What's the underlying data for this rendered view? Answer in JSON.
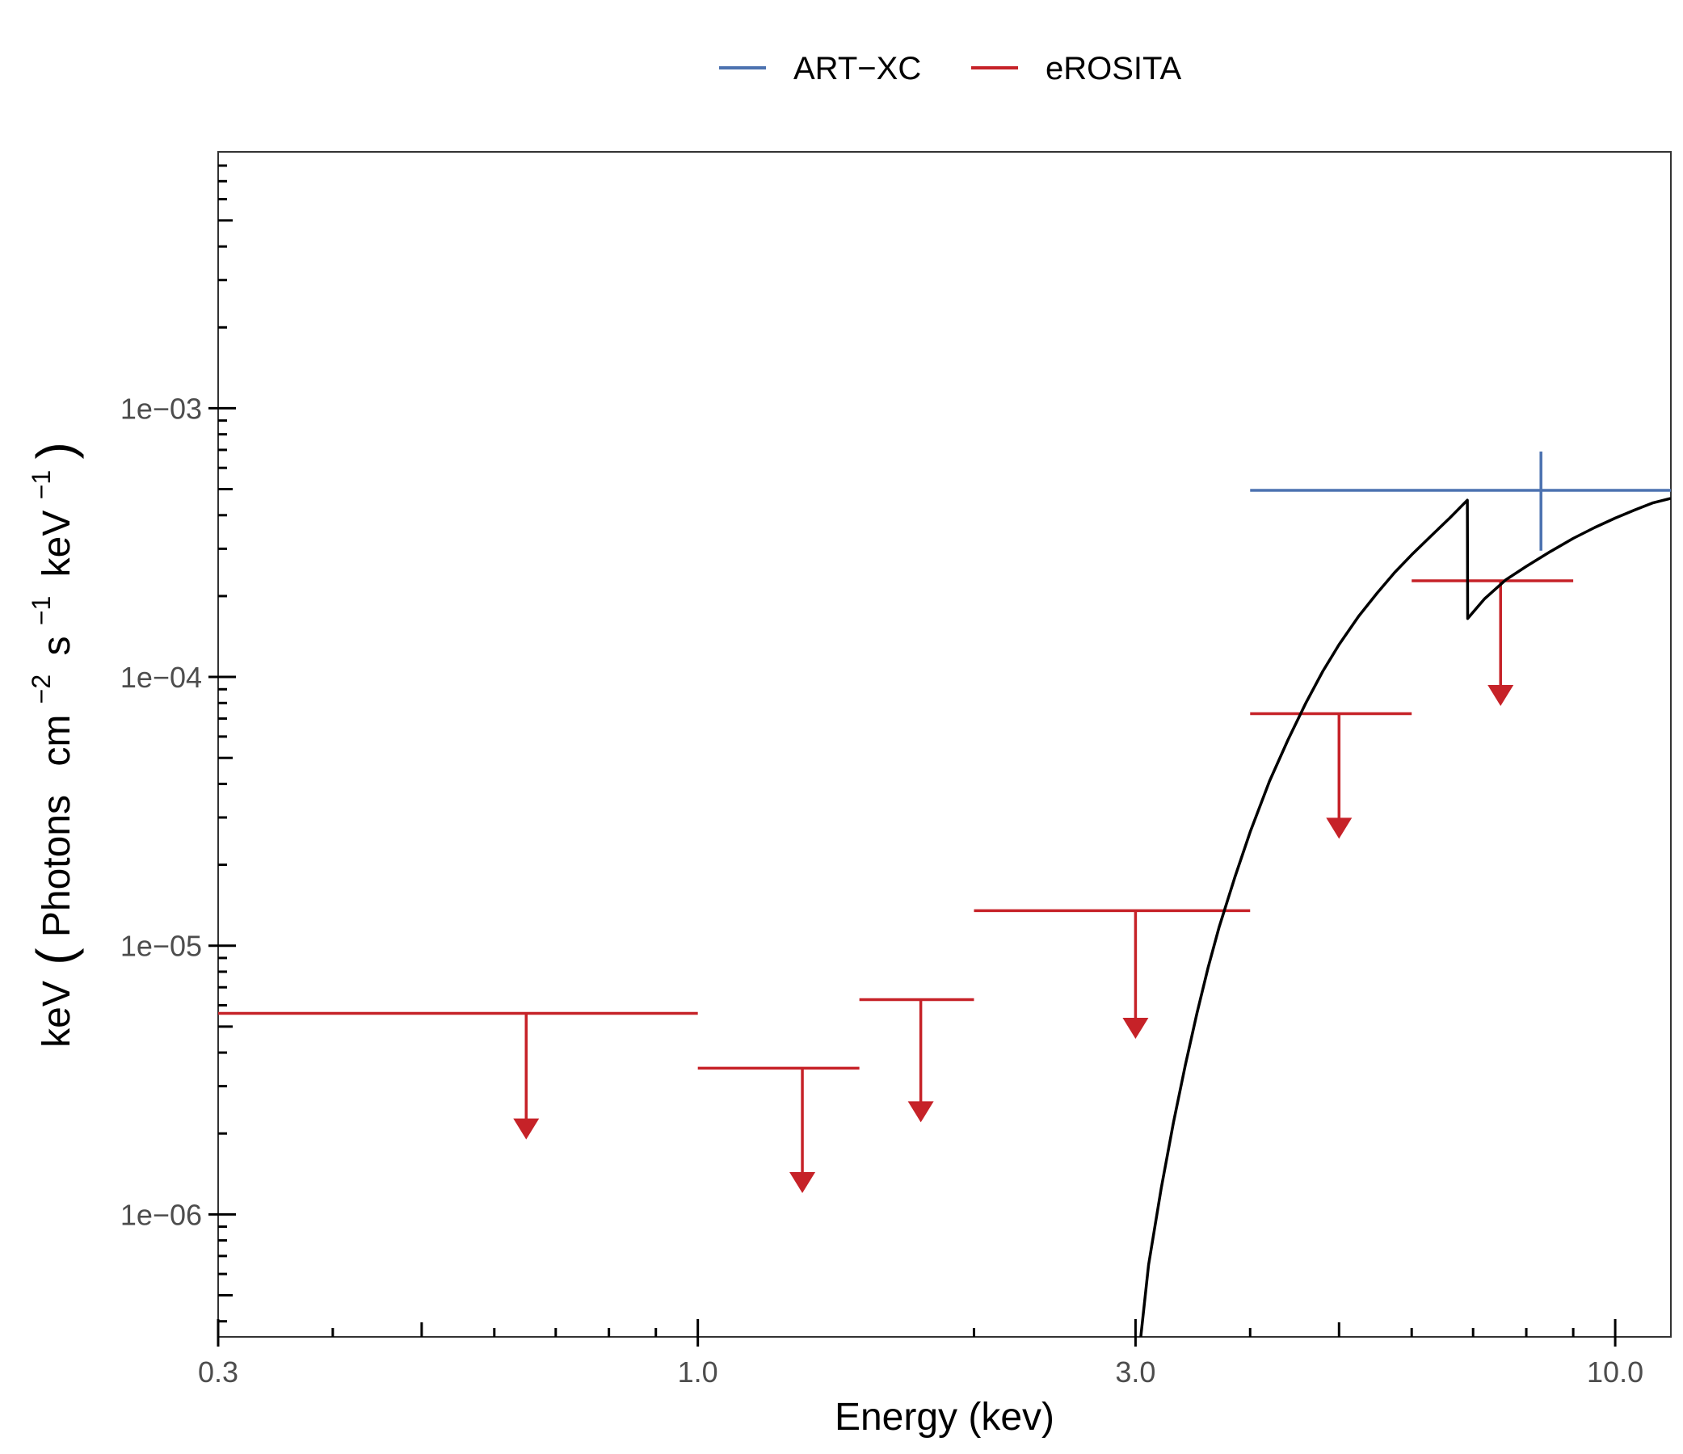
{
  "chart_data": {
    "type": "scatter",
    "xlabel": "Energy (kev)",
    "ylabel": {
      "base": "keV",
      "unit_parts": [
        "Photons",
        "cm",
        "−2",
        "s",
        "−1",
        "keV",
        "−1"
      ]
    },
    "x_scale": "log",
    "y_scale": "log",
    "xlim": [
      0.3,
      11.5
    ],
    "ylim": [
      3.5e-07,
      0.009
    ],
    "x_ticks": [
      {
        "value": 0.3,
        "label": "0.3"
      },
      {
        "value": 1.0,
        "label": "1.0"
      },
      {
        "value": 3.0,
        "label": "3.0"
      },
      {
        "value": 10.0,
        "label": "10.0"
      }
    ],
    "x_minor_ticks": [
      0.4,
      0.5,
      0.6,
      0.7,
      0.8,
      0.9,
      2,
      4,
      5,
      6,
      7,
      8,
      9
    ],
    "y_ticks": [
      {
        "value": 0.001,
        "label": "1e−03"
      },
      {
        "value": 0.0001,
        "label": "1e−04"
      },
      {
        "value": 1e-05,
        "label": "1e−05"
      },
      {
        "value": 1e-06,
        "label": "1e−06"
      }
    ],
    "grid": false,
    "legend_position": "top",
    "legend": [
      {
        "label": "ART−XC",
        "color": "#4C72B0"
      },
      {
        "label": "eROSITA",
        "color": "#C62228"
      }
    ],
    "series": [
      {
        "name": "ART−XC",
        "color": "#4C72B0",
        "kind": "errorbar",
        "points": [
          {
            "x": 8.3,
            "x_low": 4.0,
            "x_high": 11.5,
            "y": 0.000495,
            "y_low": 0.000295,
            "y_high": 0.00069
          }
        ]
      },
      {
        "name": "eROSITA",
        "color": "#C62228",
        "kind": "upper_limit",
        "points": [
          {
            "x": 0.65,
            "x_low": 0.3,
            "x_high": 1.0,
            "y": 5.6e-06,
            "arrow_to": 1.9e-06
          },
          {
            "x": 1.3,
            "x_low": 1.0,
            "x_high": 1.5,
            "y": 3.5e-06,
            "arrow_to": 1.2e-06
          },
          {
            "x": 1.75,
            "x_low": 1.5,
            "x_high": 2.0,
            "y": 6.3e-06,
            "arrow_to": 2.2e-06
          },
          {
            "x": 3.0,
            "x_low": 2.0,
            "x_high": 4.0,
            "y": 1.35e-05,
            "arrow_to": 4.5e-06
          },
          {
            "x": 5.0,
            "x_low": 4.0,
            "x_high": 6.0,
            "y": 7.3e-05,
            "arrow_to": 2.5e-05
          },
          {
            "x": 7.5,
            "x_low": 6.0,
            "x_high": 9.0,
            "y": 0.000228,
            "arrow_to": 7.8e-05
          }
        ]
      },
      {
        "kind": "model",
        "color": "#000000",
        "points": [
          [
            3.04,
            3.5e-07
          ],
          [
            3.1,
            6.5e-07
          ],
          [
            3.2,
            1.25e-06
          ],
          [
            3.3,
            2.2e-06
          ],
          [
            3.4,
            3.6e-06
          ],
          [
            3.5,
            5.6e-06
          ],
          [
            3.6,
            8.3e-06
          ],
          [
            3.7,
            1.17e-05
          ],
          [
            3.85,
            1.8e-05
          ],
          [
            4.0,
            2.65e-05
          ],
          [
            4.2,
            4.1e-05
          ],
          [
            4.4,
            5.85e-05
          ],
          [
            4.6,
            8e-05
          ],
          [
            4.8,
            0.000105
          ],
          [
            5.0,
            0.000132
          ],
          [
            5.25,
            0.000168
          ],
          [
            5.5,
            0.000205
          ],
          [
            5.75,
            0.000245
          ],
          [
            6.0,
            0.000285
          ],
          [
            6.3,
            0.000335
          ],
          [
            6.6,
            0.00039
          ],
          [
            6.9,
            0.000455
          ],
          [
            6.905,
            0.000165
          ],
          [
            7.2,
            0.000195
          ],
          [
            7.6,
            0.00023
          ],
          [
            8.0,
            0.000258
          ],
          [
            8.5,
            0.000293
          ],
          [
            9.0,
            0.000328
          ],
          [
            9.5,
            0.00036
          ],
          [
            10.0,
            0.00039
          ],
          [
            10.5,
            0.000418
          ],
          [
            11.0,
            0.000445
          ],
          [
            11.5,
            0.000462
          ]
        ]
      }
    ]
  }
}
